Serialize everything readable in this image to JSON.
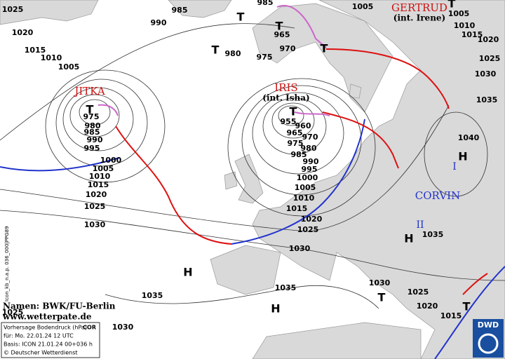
{
  "systems": [
    {
      "name": "JITKA"
    },
    {
      "name": "IRIS",
      "note": "(int. Isha)"
    },
    {
      "name": "GERTRUD",
      "note": "(int. Irene)"
    },
    {
      "name": "CORVIN"
    }
  ],
  "cell_labels": [
    "I",
    "II"
  ],
  "pressure_centers": [
    "T",
    "T",
    "T",
    "T",
    "T",
    "T",
    "T",
    "T",
    "T",
    "H",
    "H",
    "H",
    "H"
  ],
  "isobar_labels": [
    1025,
    1020,
    1015,
    1010,
    1005,
    985,
    990,
    985,
    965,
    970,
    980,
    975,
    1005,
    1005,
    1010,
    1015,
    1020,
    1025,
    1030,
    1035,
    1040,
    975,
    980,
    985,
    990,
    995,
    1000,
    1005,
    1010,
    1015,
    1020,
    1025,
    1030,
    955,
    960,
    965,
    970,
    975,
    980,
    985,
    990,
    995,
    1000,
    1005,
    1010,
    1015,
    1020,
    1025,
    1030,
    1035,
    1035,
    1035,
    1030,
    1025,
    1020,
    1015,
    1025,
    1030
  ],
  "credits": [
    "Namen: BWK/FU-Berlin",
    "www.wetterpate.de"
  ],
  "info_box": {
    "title": "Vorhersage Bodendruck (hPa)",
    "tag": "COR",
    "valid": "für:  Mo. 22.01.24  12 UTC",
    "base": "Basis: ICON  21.01.24 00+036 h",
    "copyright": "© Deutscher Wetterdienst"
  },
  "side_text": "Icon_kb_n.a.p. 036_000|PPG89",
  "logo": "DWD"
}
